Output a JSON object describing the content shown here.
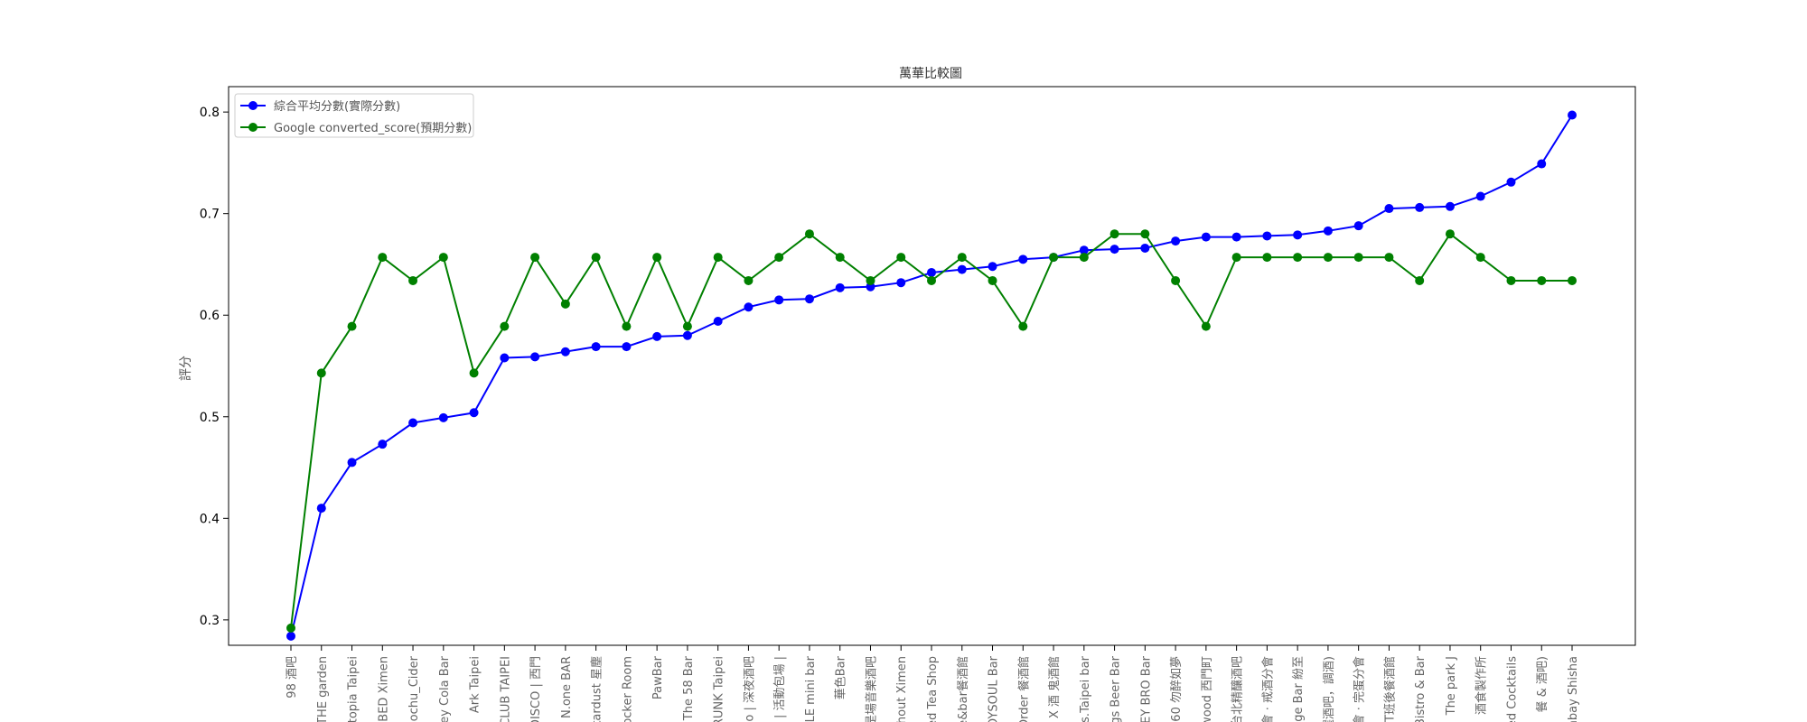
{
  "chart_data": {
    "type": "line",
    "title": "萬華比較圖",
    "xlabel": "",
    "ylabel": "評分",
    "ylim": [
      0.275,
      0.825
    ],
    "yticks": [
      0.3,
      0.4,
      0.5,
      0.6,
      0.7,
      0.8
    ],
    "grid": false,
    "legend_position": "top-left",
    "categories": [
      "98 酒吧",
      "THE garden",
      "Utopia Taipei",
      "E BED Ximen",
      "ochu_Cider",
      "irey Cola Bar",
      "Ark Taipei",
      "CLUB TAIPEI",
      "DISCO | 西門",
      "N.one BAR",
      "Stardust 星塵",
      "ocker Room",
      "PawBar",
      "The 58 Bar",
      "RUNK Taipei",
      "o | 深夜酒吧",
      "| 活動包場 |",
      "OLE mini bar",
      "華色Bar",
      "是場音樂酒吧",
      "ithout Ximen",
      "ed Tea Shop",
      "e&bar餐酒館",
      "IOYSOUL Bar",
      "Order 餐酒館",
      "P X 酒 鬼酒館",
      "rts.Taipei bar",
      "ngs Beer Bar",
      "HEY BRO Bar",
      "60 勿醉如夢",
      "wood 西門町",
      "台北精釀酒吧",
      "會 · 戒酒分會",
      "nge Bar 紛至",
      "選酒吧，調酒)",
      "會 · 完蛋分會",
      "T班後餐酒館",
      "Bistro & Bar",
      "The park J",
      "酒食製作所",
      "red Cocktails",
      "餐 & 酒吧)",
      "onbay Shisha"
    ],
    "series": [
      {
        "name": "綜合平均分數(實際分數)",
        "color": "#0000ff",
        "values": [
          0.284,
          0.41,
          0.455,
          0.473,
          0.494,
          0.499,
          0.504,
          0.558,
          0.559,
          0.564,
          0.569,
          0.569,
          0.579,
          0.58,
          0.594,
          0.608,
          0.615,
          0.616,
          0.627,
          0.628,
          0.632,
          0.642,
          0.645,
          0.648,
          0.655,
          0.657,
          0.664,
          0.665,
          0.666,
          0.673,
          0.677,
          0.677,
          0.678,
          0.679,
          0.683,
          0.688,
          0.705,
          0.706,
          0.707,
          0.717,
          0.731,
          0.749,
          0.797
        ]
      },
      {
        "name": "Google converted_score(預期分數)",
        "color": "#008000",
        "values": [
          0.292,
          0.543,
          0.589,
          0.657,
          0.634,
          0.657,
          0.543,
          0.589,
          0.657,
          0.611,
          0.657,
          0.589,
          0.657,
          0.589,
          0.657,
          0.634,
          0.657,
          0.68,
          0.657,
          0.634,
          0.657,
          0.634,
          0.657,
          0.634,
          0.589,
          0.657,
          0.657,
          0.68,
          0.68,
          0.634,
          0.589,
          0.657,
          0.657,
          0.657,
          0.657,
          0.657,
          0.657,
          0.634,
          0.68,
          0.657,
          0.634,
          0.634,
          0.634
        ]
      }
    ]
  }
}
